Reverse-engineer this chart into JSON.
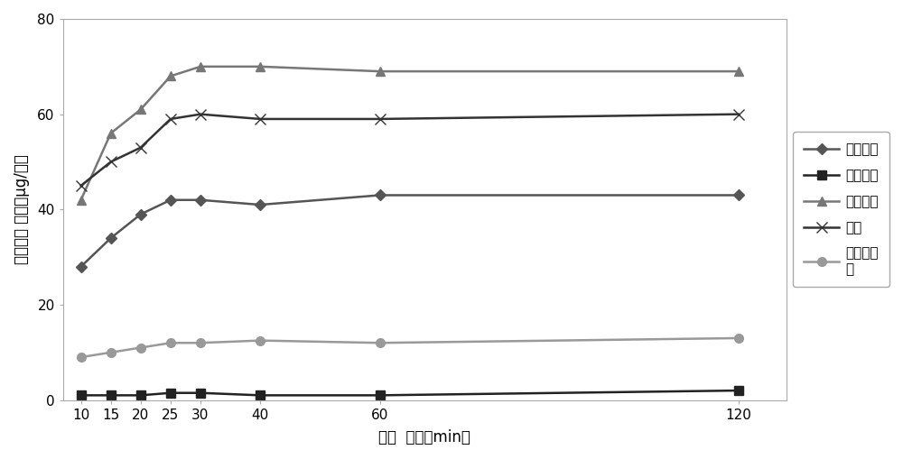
{
  "x": [
    10,
    15,
    20,
    25,
    30,
    40,
    60,
    120
  ],
  "series": [
    {
      "label": "对苯二酚",
      "y": [
        28,
        34,
        39,
        42,
        42,
        41,
        43,
        43
      ],
      "color": "#555555",
      "marker": "D",
      "markersize": 6,
      "linestyle": "-",
      "linewidth": 1.8
    },
    {
      "label": "间苯二酚",
      "y": [
        1,
        1,
        1,
        1.5,
        1.5,
        1,
        1,
        2
      ],
      "color": "#222222",
      "marker": "s",
      "markersize": 7,
      "linestyle": "-",
      "linewidth": 1.8
    },
    {
      "label": "邻苯二酚",
      "y": [
        42,
        56,
        61,
        68,
        70,
        70,
        69,
        69
      ],
      "color": "#777777",
      "marker": "^",
      "markersize": 7,
      "linestyle": "-",
      "linewidth": 1.8
    },
    {
      "label": "苯酚",
      "y": [
        45,
        50,
        53,
        59,
        60,
        59,
        59,
        60
      ],
      "color": "#333333",
      "marker": "x",
      "markersize": 8,
      "linestyle": "-",
      "linewidth": 1.8
    },
    {
      "label": "间、对甲\n酚",
      "y": [
        9,
        10,
        11,
        12,
        12,
        12.5,
        12,
        13
      ],
      "color": "#999999",
      "marker": "o",
      "markersize": 7,
      "linestyle": "-",
      "linewidth": 1.8
    }
  ],
  "xlabel": "时间  单位（min）",
  "ylabel": "检测含量 单位（μg/支）",
  "ylim": [
    0,
    80
  ],
  "yticks": [
    0,
    20,
    40,
    60,
    80
  ],
  "xticks": [
    10,
    15,
    20,
    25,
    30,
    40,
    60,
    120
  ],
  "background_color": "#ffffff"
}
